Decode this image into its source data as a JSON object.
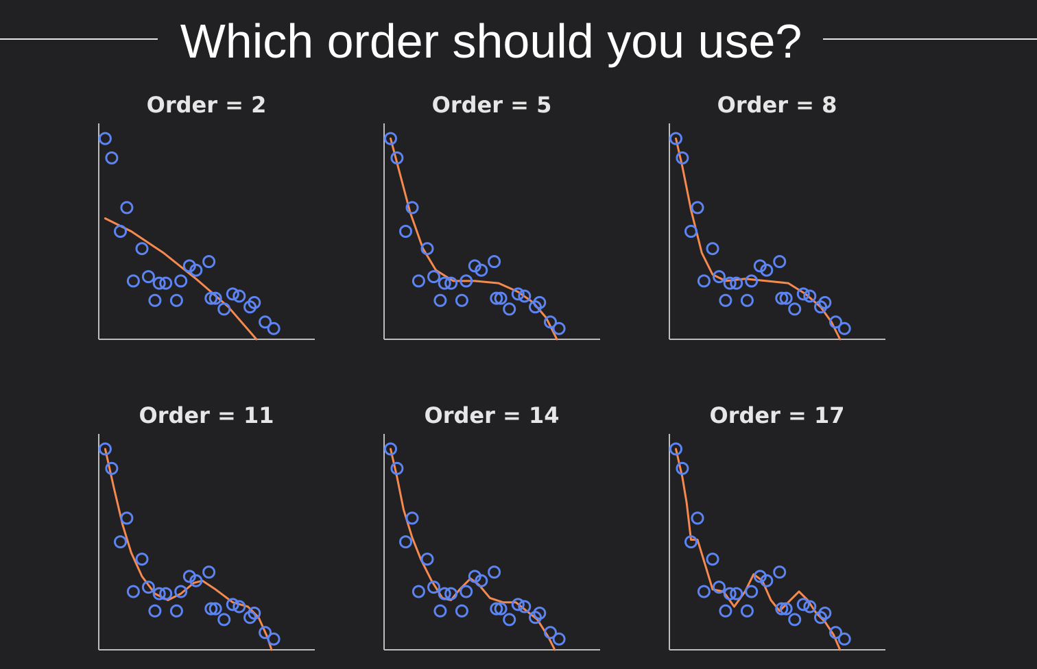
{
  "page": {
    "title": "Which order should you use?",
    "colors": {
      "background": "#212022",
      "points": "#5c84f2",
      "fit": "#f48a50",
      "axes": "#bdbdbd"
    }
  },
  "chart_data": [
    {
      "type": "scatter",
      "title": "Order = 2",
      "order": 2,
      "xlim": [
        0,
        10
      ],
      "ylim": [
        0,
        10
      ],
      "points": [
        [
          0.3,
          9.3
        ],
        [
          0.6,
          8.4
        ],
        [
          1.3,
          6.1
        ],
        [
          1.0,
          5.0
        ],
        [
          2.0,
          4.2
        ],
        [
          1.6,
          2.7
        ],
        [
          2.3,
          2.9
        ],
        [
          2.6,
          1.8
        ],
        [
          2.8,
          2.6
        ],
        [
          3.1,
          2.6
        ],
        [
          3.6,
          1.8
        ],
        [
          3.8,
          2.7
        ],
        [
          4.2,
          3.4
        ],
        [
          4.5,
          3.2
        ],
        [
          5.1,
          3.6
        ],
        [
          5.2,
          1.9
        ],
        [
          5.4,
          1.9
        ],
        [
          5.8,
          1.4
        ],
        [
          6.2,
          2.1
        ],
        [
          6.5,
          2.0
        ],
        [
          7.0,
          1.5
        ],
        [
          7.2,
          1.7
        ],
        [
          7.7,
          0.8
        ],
        [
          8.1,
          0.5
        ]
      ],
      "fit": [
        [
          0.3,
          5.6
        ],
        [
          1.5,
          5.0
        ],
        [
          3.0,
          4.0
        ],
        [
          4.5,
          2.8
        ],
        [
          6.0,
          1.5
        ],
        [
          7.3,
          0.0
        ]
      ]
    },
    {
      "type": "scatter",
      "title": "Order = 5",
      "order": 5,
      "xlim": [
        0,
        10
      ],
      "ylim": [
        0,
        10
      ],
      "points": [
        [
          0.3,
          9.3
        ],
        [
          0.6,
          8.4
        ],
        [
          1.3,
          6.1
        ],
        [
          1.0,
          5.0
        ],
        [
          2.0,
          4.2
        ],
        [
          1.6,
          2.7
        ],
        [
          2.3,
          2.9
        ],
        [
          2.6,
          1.8
        ],
        [
          2.8,
          2.6
        ],
        [
          3.1,
          2.6
        ],
        [
          3.6,
          1.8
        ],
        [
          3.8,
          2.7
        ],
        [
          4.2,
          3.4
        ],
        [
          4.5,
          3.2
        ],
        [
          5.1,
          3.6
        ],
        [
          5.2,
          1.9
        ],
        [
          5.4,
          1.9
        ],
        [
          5.8,
          1.4
        ],
        [
          6.2,
          2.1
        ],
        [
          6.5,
          2.0
        ],
        [
          7.0,
          1.5
        ],
        [
          7.2,
          1.7
        ],
        [
          7.7,
          0.8
        ],
        [
          8.1,
          0.5
        ]
      ],
      "fit": [
        [
          0.3,
          9.3
        ],
        [
          0.7,
          7.8
        ],
        [
          1.2,
          5.9
        ],
        [
          1.8,
          4.2
        ],
        [
          2.4,
          3.2
        ],
        [
          3.2,
          2.7
        ],
        [
          4.2,
          2.7
        ],
        [
          5.3,
          2.6
        ],
        [
          6.2,
          2.2
        ],
        [
          6.9,
          1.7
        ],
        [
          7.5,
          1.0
        ],
        [
          8.0,
          0.0
        ]
      ]
    },
    {
      "type": "scatter",
      "title": "Order = 8",
      "order": 8,
      "xlim": [
        0,
        10
      ],
      "ylim": [
        0,
        10
      ],
      "points": [
        [
          0.3,
          9.3
        ],
        [
          0.6,
          8.4
        ],
        [
          1.3,
          6.1
        ],
        [
          1.0,
          5.0
        ],
        [
          2.0,
          4.2
        ],
        [
          1.6,
          2.7
        ],
        [
          2.3,
          2.9
        ],
        [
          2.6,
          1.8
        ],
        [
          2.8,
          2.6
        ],
        [
          3.1,
          2.6
        ],
        [
          3.6,
          1.8
        ],
        [
          3.8,
          2.7
        ],
        [
          4.2,
          3.4
        ],
        [
          4.5,
          3.2
        ],
        [
          5.1,
          3.6
        ],
        [
          5.2,
          1.9
        ],
        [
          5.4,
          1.9
        ],
        [
          5.8,
          1.4
        ],
        [
          6.2,
          2.1
        ],
        [
          6.5,
          2.0
        ],
        [
          7.0,
          1.5
        ],
        [
          7.2,
          1.7
        ],
        [
          7.7,
          0.8
        ],
        [
          8.1,
          0.5
        ]
      ],
      "fit": [
        [
          0.3,
          9.3
        ],
        [
          0.6,
          8.0
        ],
        [
          1.0,
          6.0
        ],
        [
          1.5,
          4.0
        ],
        [
          2.0,
          3.0
        ],
        [
          2.6,
          2.7
        ],
        [
          3.5,
          2.8
        ],
        [
          4.5,
          2.7
        ],
        [
          5.5,
          2.6
        ],
        [
          6.3,
          2.1
        ],
        [
          7.0,
          1.5
        ],
        [
          7.5,
          0.8
        ],
        [
          7.9,
          0.0
        ]
      ]
    },
    {
      "type": "scatter",
      "title": "Order = 11",
      "order": 11,
      "xlim": [
        0,
        10
      ],
      "ylim": [
        0,
        10
      ],
      "points": [
        [
          0.3,
          9.3
        ],
        [
          0.6,
          8.4
        ],
        [
          1.3,
          6.1
        ],
        [
          1.0,
          5.0
        ],
        [
          2.0,
          4.2
        ],
        [
          1.6,
          2.7
        ],
        [
          2.3,
          2.9
        ],
        [
          2.6,
          1.8
        ],
        [
          2.8,
          2.6
        ],
        [
          3.1,
          2.6
        ],
        [
          3.6,
          1.8
        ],
        [
          3.8,
          2.7
        ],
        [
          4.2,
          3.4
        ],
        [
          4.5,
          3.2
        ],
        [
          5.1,
          3.6
        ],
        [
          5.2,
          1.9
        ],
        [
          5.4,
          1.9
        ],
        [
          5.8,
          1.4
        ],
        [
          6.2,
          2.1
        ],
        [
          6.5,
          2.0
        ],
        [
          7.0,
          1.5
        ],
        [
          7.2,
          1.7
        ],
        [
          7.7,
          0.8
        ],
        [
          8.1,
          0.5
        ]
      ],
      "fit": [
        [
          0.3,
          9.3
        ],
        [
          0.7,
          7.5
        ],
        [
          1.1,
          5.8
        ],
        [
          1.5,
          4.5
        ],
        [
          2.0,
          3.4
        ],
        [
          2.6,
          2.6
        ],
        [
          3.2,
          2.3
        ],
        [
          3.8,
          2.6
        ],
        [
          4.4,
          3.1
        ],
        [
          4.8,
          3.2
        ],
        [
          5.4,
          2.8
        ],
        [
          6.2,
          2.2
        ],
        [
          6.9,
          2.0
        ],
        [
          7.4,
          1.5
        ],
        [
          7.8,
          0.6
        ],
        [
          8.0,
          0.0
        ]
      ]
    },
    {
      "type": "scatter",
      "title": "Order = 14",
      "order": 14,
      "xlim": [
        0,
        10
      ],
      "ylim": [
        0,
        10
      ],
      "points": [
        [
          0.3,
          9.3
        ],
        [
          0.6,
          8.4
        ],
        [
          1.3,
          6.1
        ],
        [
          1.0,
          5.0
        ],
        [
          2.0,
          4.2
        ],
        [
          1.6,
          2.7
        ],
        [
          2.3,
          2.9
        ],
        [
          2.6,
          1.8
        ],
        [
          2.8,
          2.6
        ],
        [
          3.1,
          2.6
        ],
        [
          3.6,
          1.8
        ],
        [
          3.8,
          2.7
        ],
        [
          4.2,
          3.4
        ],
        [
          4.5,
          3.2
        ],
        [
          5.1,
          3.6
        ],
        [
          5.2,
          1.9
        ],
        [
          5.4,
          1.9
        ],
        [
          5.8,
          1.4
        ],
        [
          6.2,
          2.1
        ],
        [
          6.5,
          2.0
        ],
        [
          7.0,
          1.5
        ],
        [
          7.2,
          1.7
        ],
        [
          7.7,
          0.8
        ],
        [
          8.1,
          0.5
        ]
      ],
      "fit": [
        [
          0.3,
          9.3
        ],
        [
          0.6,
          8.0
        ],
        [
          0.9,
          6.5
        ],
        [
          1.3,
          5.2
        ],
        [
          1.7,
          4.2
        ],
        [
          2.2,
          3.2
        ],
        [
          2.7,
          2.4
        ],
        [
          3.1,
          2.3
        ],
        [
          3.5,
          2.8
        ],
        [
          4.0,
          3.3
        ],
        [
          4.4,
          3.0
        ],
        [
          4.9,
          2.4
        ],
        [
          5.5,
          2.2
        ],
        [
          6.1,
          2.2
        ],
        [
          6.6,
          1.8
        ],
        [
          7.1,
          1.4
        ],
        [
          7.6,
          0.6
        ],
        [
          7.9,
          0.0
        ]
      ]
    },
    {
      "type": "scatter",
      "title": "Order = 17",
      "order": 17,
      "xlim": [
        0,
        10
      ],
      "ylim": [
        0,
        10
      ],
      "points": [
        [
          0.3,
          9.3
        ],
        [
          0.6,
          8.4
        ],
        [
          1.3,
          6.1
        ],
        [
          1.0,
          5.0
        ],
        [
          2.0,
          4.2
        ],
        [
          1.6,
          2.7
        ],
        [
          2.3,
          2.9
        ],
        [
          2.6,
          1.8
        ],
        [
          2.8,
          2.6
        ],
        [
          3.1,
          2.6
        ],
        [
          3.6,
          1.8
        ],
        [
          3.8,
          2.7
        ],
        [
          4.2,
          3.4
        ],
        [
          4.5,
          3.2
        ],
        [
          5.1,
          3.6
        ],
        [
          5.2,
          1.9
        ],
        [
          5.4,
          1.9
        ],
        [
          5.8,
          1.4
        ],
        [
          6.2,
          2.1
        ],
        [
          6.5,
          2.0
        ],
        [
          7.0,
          1.5
        ],
        [
          7.2,
          1.7
        ],
        [
          7.7,
          0.8
        ],
        [
          8.1,
          0.5
        ]
      ],
      "fit": [
        [
          0.3,
          9.3
        ],
        [
          0.6,
          8.0
        ],
        [
          0.8,
          6.8
        ],
        [
          1.0,
          5.1
        ],
        [
          1.3,
          5.1
        ],
        [
          1.7,
          3.8
        ],
        [
          2.0,
          2.8
        ],
        [
          2.5,
          2.7
        ],
        [
          3.0,
          2.0
        ],
        [
          3.5,
          2.7
        ],
        [
          3.9,
          3.5
        ],
        [
          4.3,
          3.2
        ],
        [
          4.7,
          2.3
        ],
        [
          5.1,
          1.8
        ],
        [
          5.6,
          2.3
        ],
        [
          6.0,
          2.7
        ],
        [
          6.4,
          2.3
        ],
        [
          6.8,
          1.7
        ],
        [
          7.2,
          1.3
        ],
        [
          7.6,
          0.7
        ],
        [
          7.9,
          0.0
        ]
      ]
    }
  ]
}
